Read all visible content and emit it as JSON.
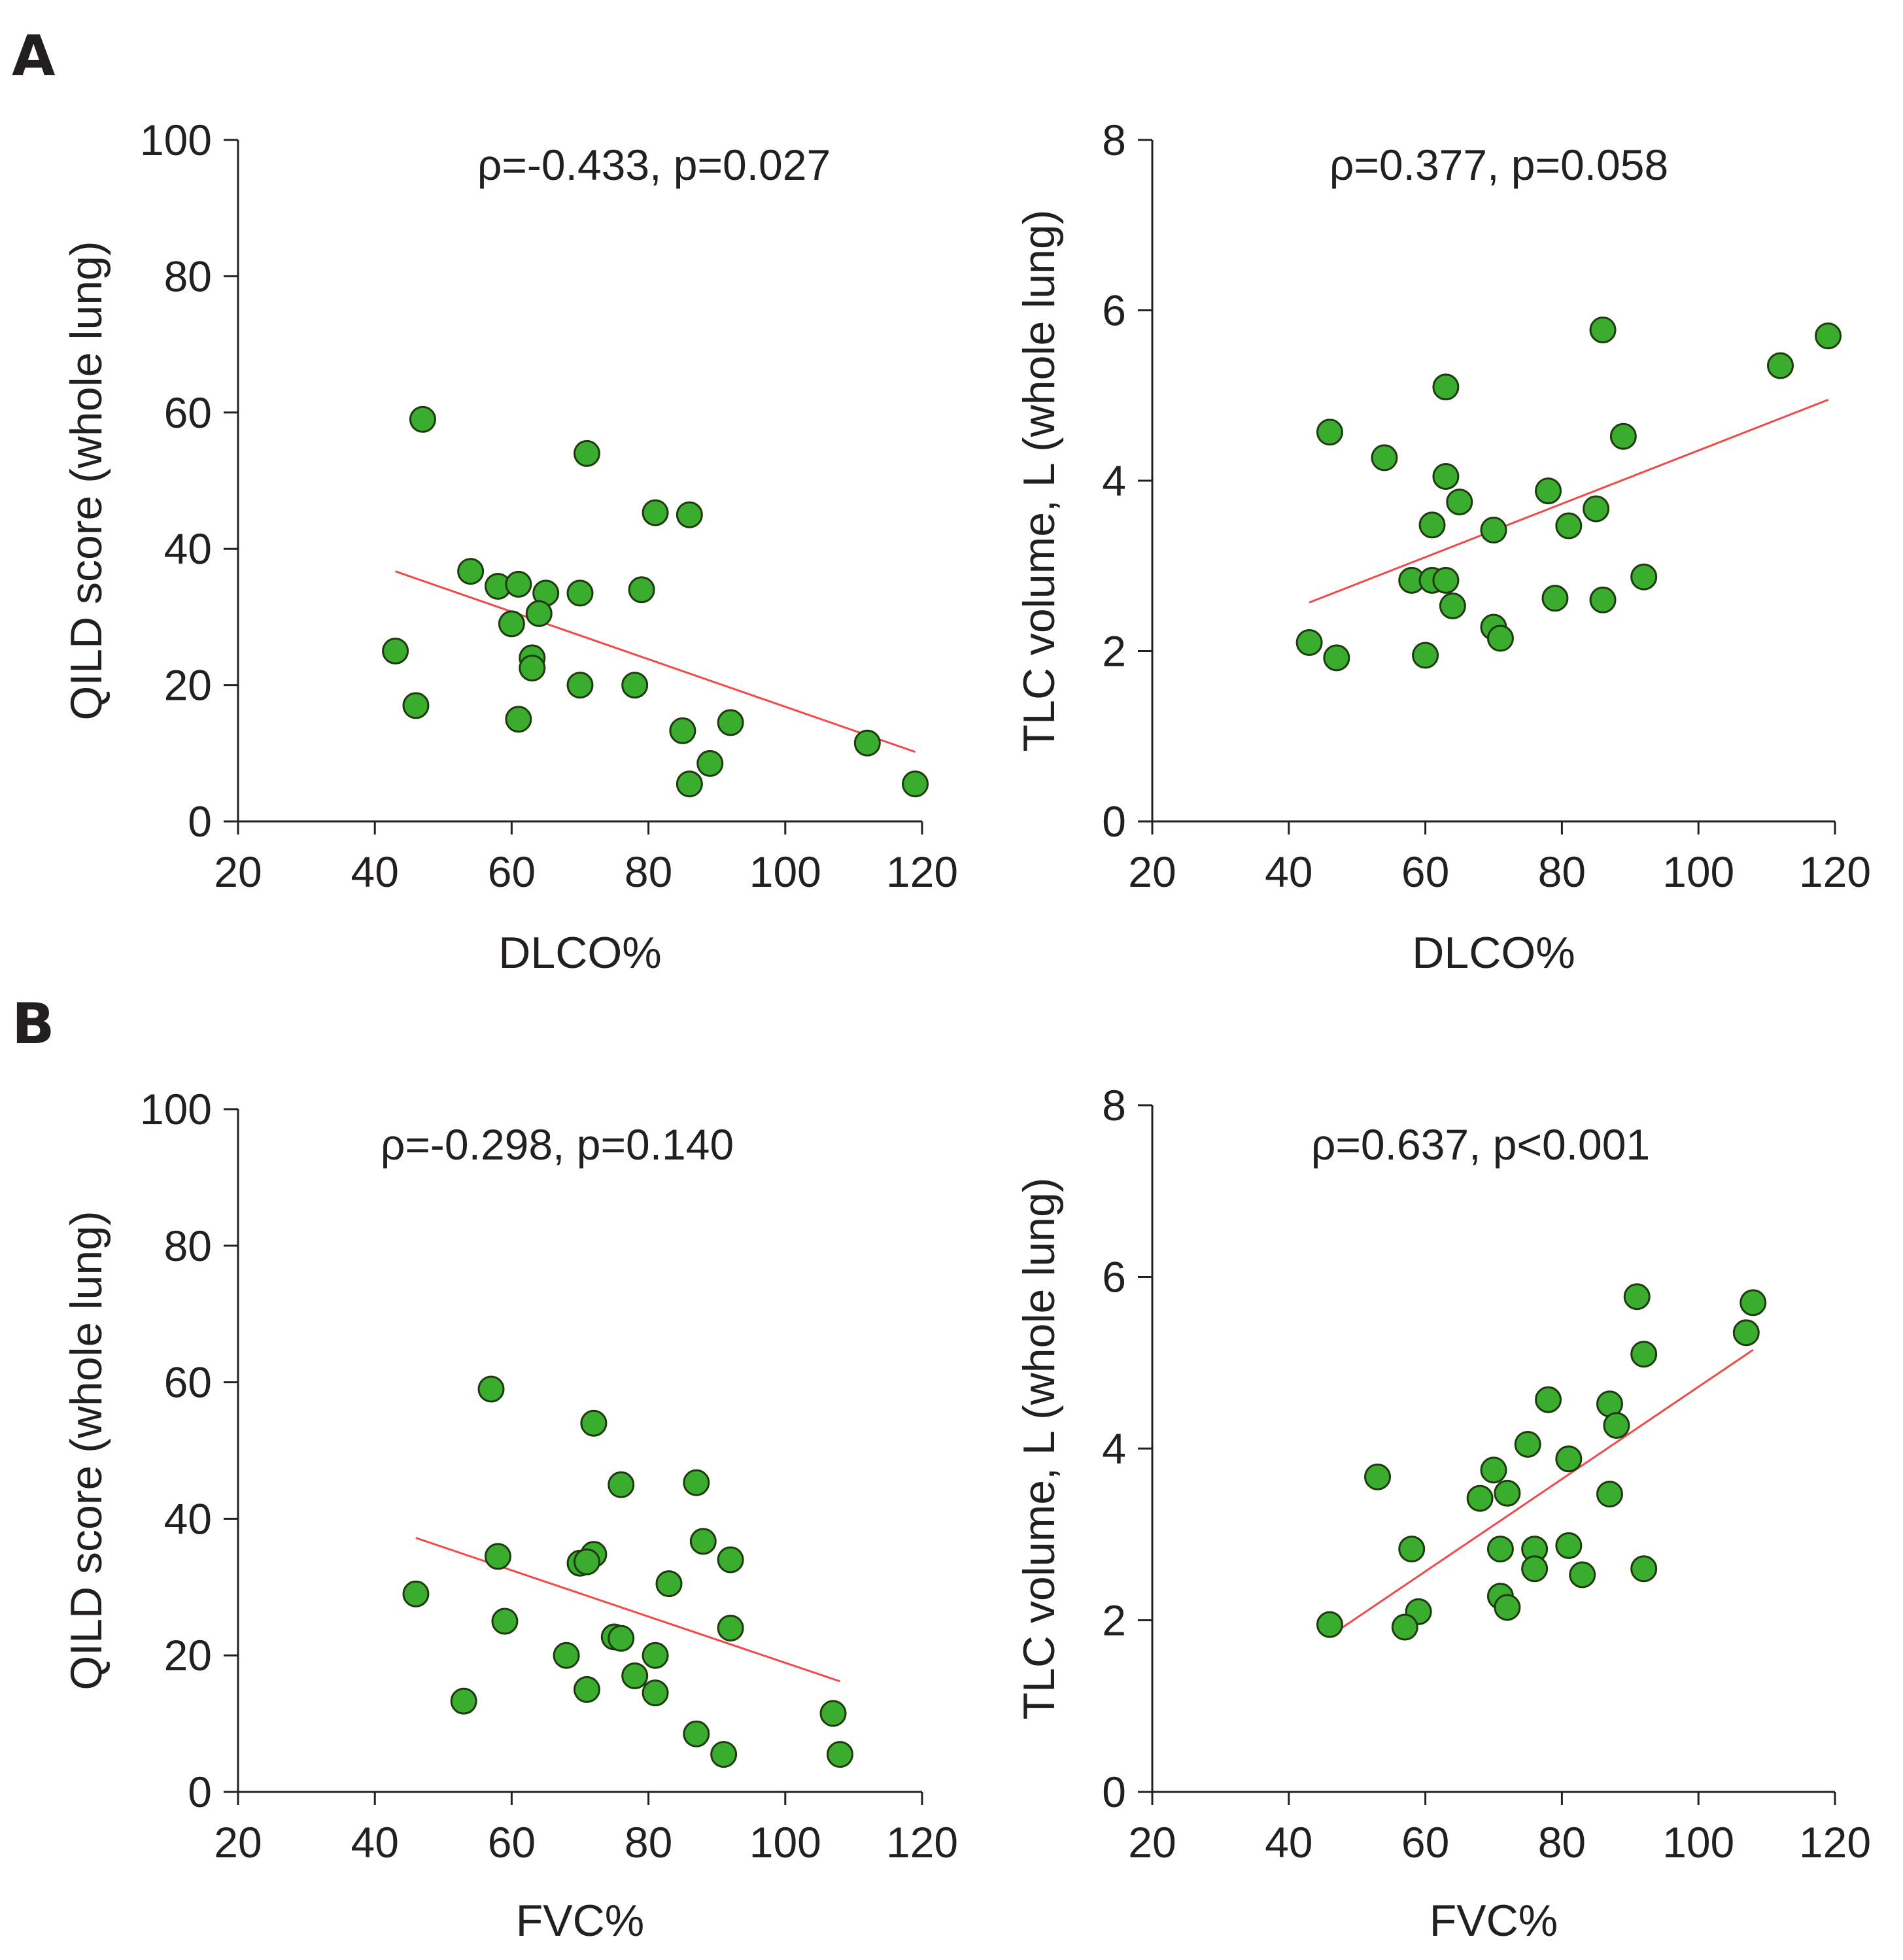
{
  "figure": {
    "panel_letters": [
      "A",
      "B"
    ],
    "colors": {
      "point_fill": "#3aad2e",
      "point_stroke": "#1f3a10",
      "fit_line": "#ef4b4b",
      "axis": "#231f20",
      "text": "#231f20"
    }
  },
  "chart_data": [
    {
      "type": "scatter",
      "panel": "A",
      "annotation": "ρ=-0.433, p=0.027",
      "xlabel": "DLCO%",
      "ylabel": "QILD score (whole lung)",
      "xlim": [
        20,
        120
      ],
      "ylim": [
        0,
        100
      ],
      "xticks": [
        20,
        40,
        60,
        80,
        100,
        120
      ],
      "yticks": [
        0,
        20,
        40,
        60,
        80,
        100
      ],
      "fit_line": {
        "x": [
          43,
          119
        ],
        "y": [
          36.7,
          10.2
        ]
      },
      "points": [
        [
          47,
          59
        ],
        [
          71,
          54
        ],
        [
          81,
          45.3
        ],
        [
          86,
          45
        ],
        [
          54,
          36.7
        ],
        [
          58,
          34.5
        ],
        [
          61,
          34.8
        ],
        [
          65,
          33.5
        ],
        [
          70,
          33.5
        ],
        [
          79,
          34
        ],
        [
          64,
          30.5
        ],
        [
          60,
          29
        ],
        [
          43,
          25
        ],
        [
          63,
          24
        ],
        [
          63,
          22.5
        ],
        [
          70,
          20
        ],
        [
          78,
          20
        ],
        [
          46,
          17
        ],
        [
          61,
          15
        ],
        [
          85,
          13.3
        ],
        [
          92,
          14.5
        ],
        [
          89,
          8.5
        ],
        [
          86,
          5.5
        ],
        [
          112,
          11.5
        ],
        [
          119,
          5.5
        ]
      ]
    },
    {
      "type": "scatter",
      "panel": "A",
      "annotation": "ρ=0.377, p=0.058",
      "xlabel": "DLCO%",
      "ylabel": "TLC volume, L (whole lung)",
      "xlim": [
        20,
        120
      ],
      "ylim": [
        0,
        8
      ],
      "xticks": [
        20,
        40,
        60,
        80,
        100,
        120
      ],
      "yticks": [
        0,
        2,
        4,
        6,
        8
      ],
      "fit_line": {
        "x": [
          43,
          119
        ],
        "y": [
          2.57,
          4.95
        ]
      },
      "points": [
        [
          86,
          5.77
        ],
        [
          119,
          5.7
        ],
        [
          112,
          5.35
        ],
        [
          63,
          5.1
        ],
        [
          46,
          4.57
        ],
        [
          89,
          4.52
        ],
        [
          54,
          4.27
        ],
        [
          63,
          4.05
        ],
        [
          78,
          3.88
        ],
        [
          65,
          3.75
        ],
        [
          85,
          3.67
        ],
        [
          61,
          3.48
        ],
        [
          81,
          3.47
        ],
        [
          70,
          3.42
        ],
        [
          58,
          2.83
        ],
        [
          61,
          2.83
        ],
        [
          63,
          2.83
        ],
        [
          92,
          2.87
        ],
        [
          79,
          2.62
        ],
        [
          86,
          2.6
        ],
        [
          64,
          2.53
        ],
        [
          70,
          2.28
        ],
        [
          71,
          2.15
        ],
        [
          43,
          2.1
        ],
        [
          47,
          1.92
        ],
        [
          60,
          1.95
        ]
      ]
    },
    {
      "type": "scatter",
      "panel": "B",
      "annotation": "ρ=-0.298, p=0.140",
      "xlabel": "FVC%",
      "ylabel": "QILD score (whole lung)",
      "xlim": [
        20,
        120
      ],
      "ylim": [
        0,
        100
      ],
      "xticks": [
        20,
        40,
        60,
        80,
        100,
        120
      ],
      "yticks": [
        0,
        20,
        40,
        60,
        80,
        100
      ],
      "fit_line": {
        "x": [
          46,
          108
        ],
        "y": [
          37.2,
          16.2
        ]
      },
      "points": [
        [
          57,
          59
        ],
        [
          72,
          54
        ],
        [
          76,
          45
        ],
        [
          87,
          45.3
        ],
        [
          88,
          36.7
        ],
        [
          58,
          34.5
        ],
        [
          72,
          34.8
        ],
        [
          70,
          33.5
        ],
        [
          71,
          33.7
        ],
        [
          92,
          34
        ],
        [
          83,
          30.5
        ],
        [
          46,
          29
        ],
        [
          59,
          25
        ],
        [
          92,
          24
        ],
        [
          75,
          22.7
        ],
        [
          76,
          22.5
        ],
        [
          68,
          20
        ],
        [
          81,
          20
        ],
        [
          78,
          17
        ],
        [
          71,
          15
        ],
        [
          81,
          14.5
        ],
        [
          53,
          13.3
        ],
        [
          87,
          8.5
        ],
        [
          91,
          5.5
        ],
        [
          107,
          11.5
        ],
        [
          108,
          5.5
        ]
      ]
    },
    {
      "type": "scatter",
      "panel": "B",
      "annotation": "ρ=0.637, p<0.001",
      "xlabel": "FVC%",
      "ylabel": "TLC volume, L (whole lung)",
      "xlim": [
        20,
        120
      ],
      "ylim": [
        0,
        8
      ],
      "xticks": [
        20,
        40,
        60,
        80,
        100,
        120
      ],
      "yticks": [
        0,
        2,
        4,
        6,
        8
      ],
      "fit_line": {
        "x": [
          47,
          108
        ],
        "y": [
          1.87,
          5.15
        ]
      },
      "points": [
        [
          91,
          5.77
        ],
        [
          108,
          5.7
        ],
        [
          107,
          5.35
        ],
        [
          92,
          5.1
        ],
        [
          78,
          4.57
        ],
        [
          87,
          4.52
        ],
        [
          88,
          4.27
        ],
        [
          75,
          4.05
        ],
        [
          81,
          3.88
        ],
        [
          70,
          3.75
        ],
        [
          53,
          3.67
        ],
        [
          72,
          3.48
        ],
        [
          87,
          3.47
        ],
        [
          68,
          3.42
        ],
        [
          58,
          2.83
        ],
        [
          71,
          2.83
        ],
        [
          76,
          2.83
        ],
        [
          81,
          2.87
        ],
        [
          76,
          2.6
        ],
        [
          92,
          2.6
        ],
        [
          83,
          2.53
        ],
        [
          71,
          2.28
        ],
        [
          72,
          2.15
        ],
        [
          59,
          2.1
        ],
        [
          57,
          1.92
        ],
        [
          46,
          1.95
        ]
      ]
    }
  ]
}
